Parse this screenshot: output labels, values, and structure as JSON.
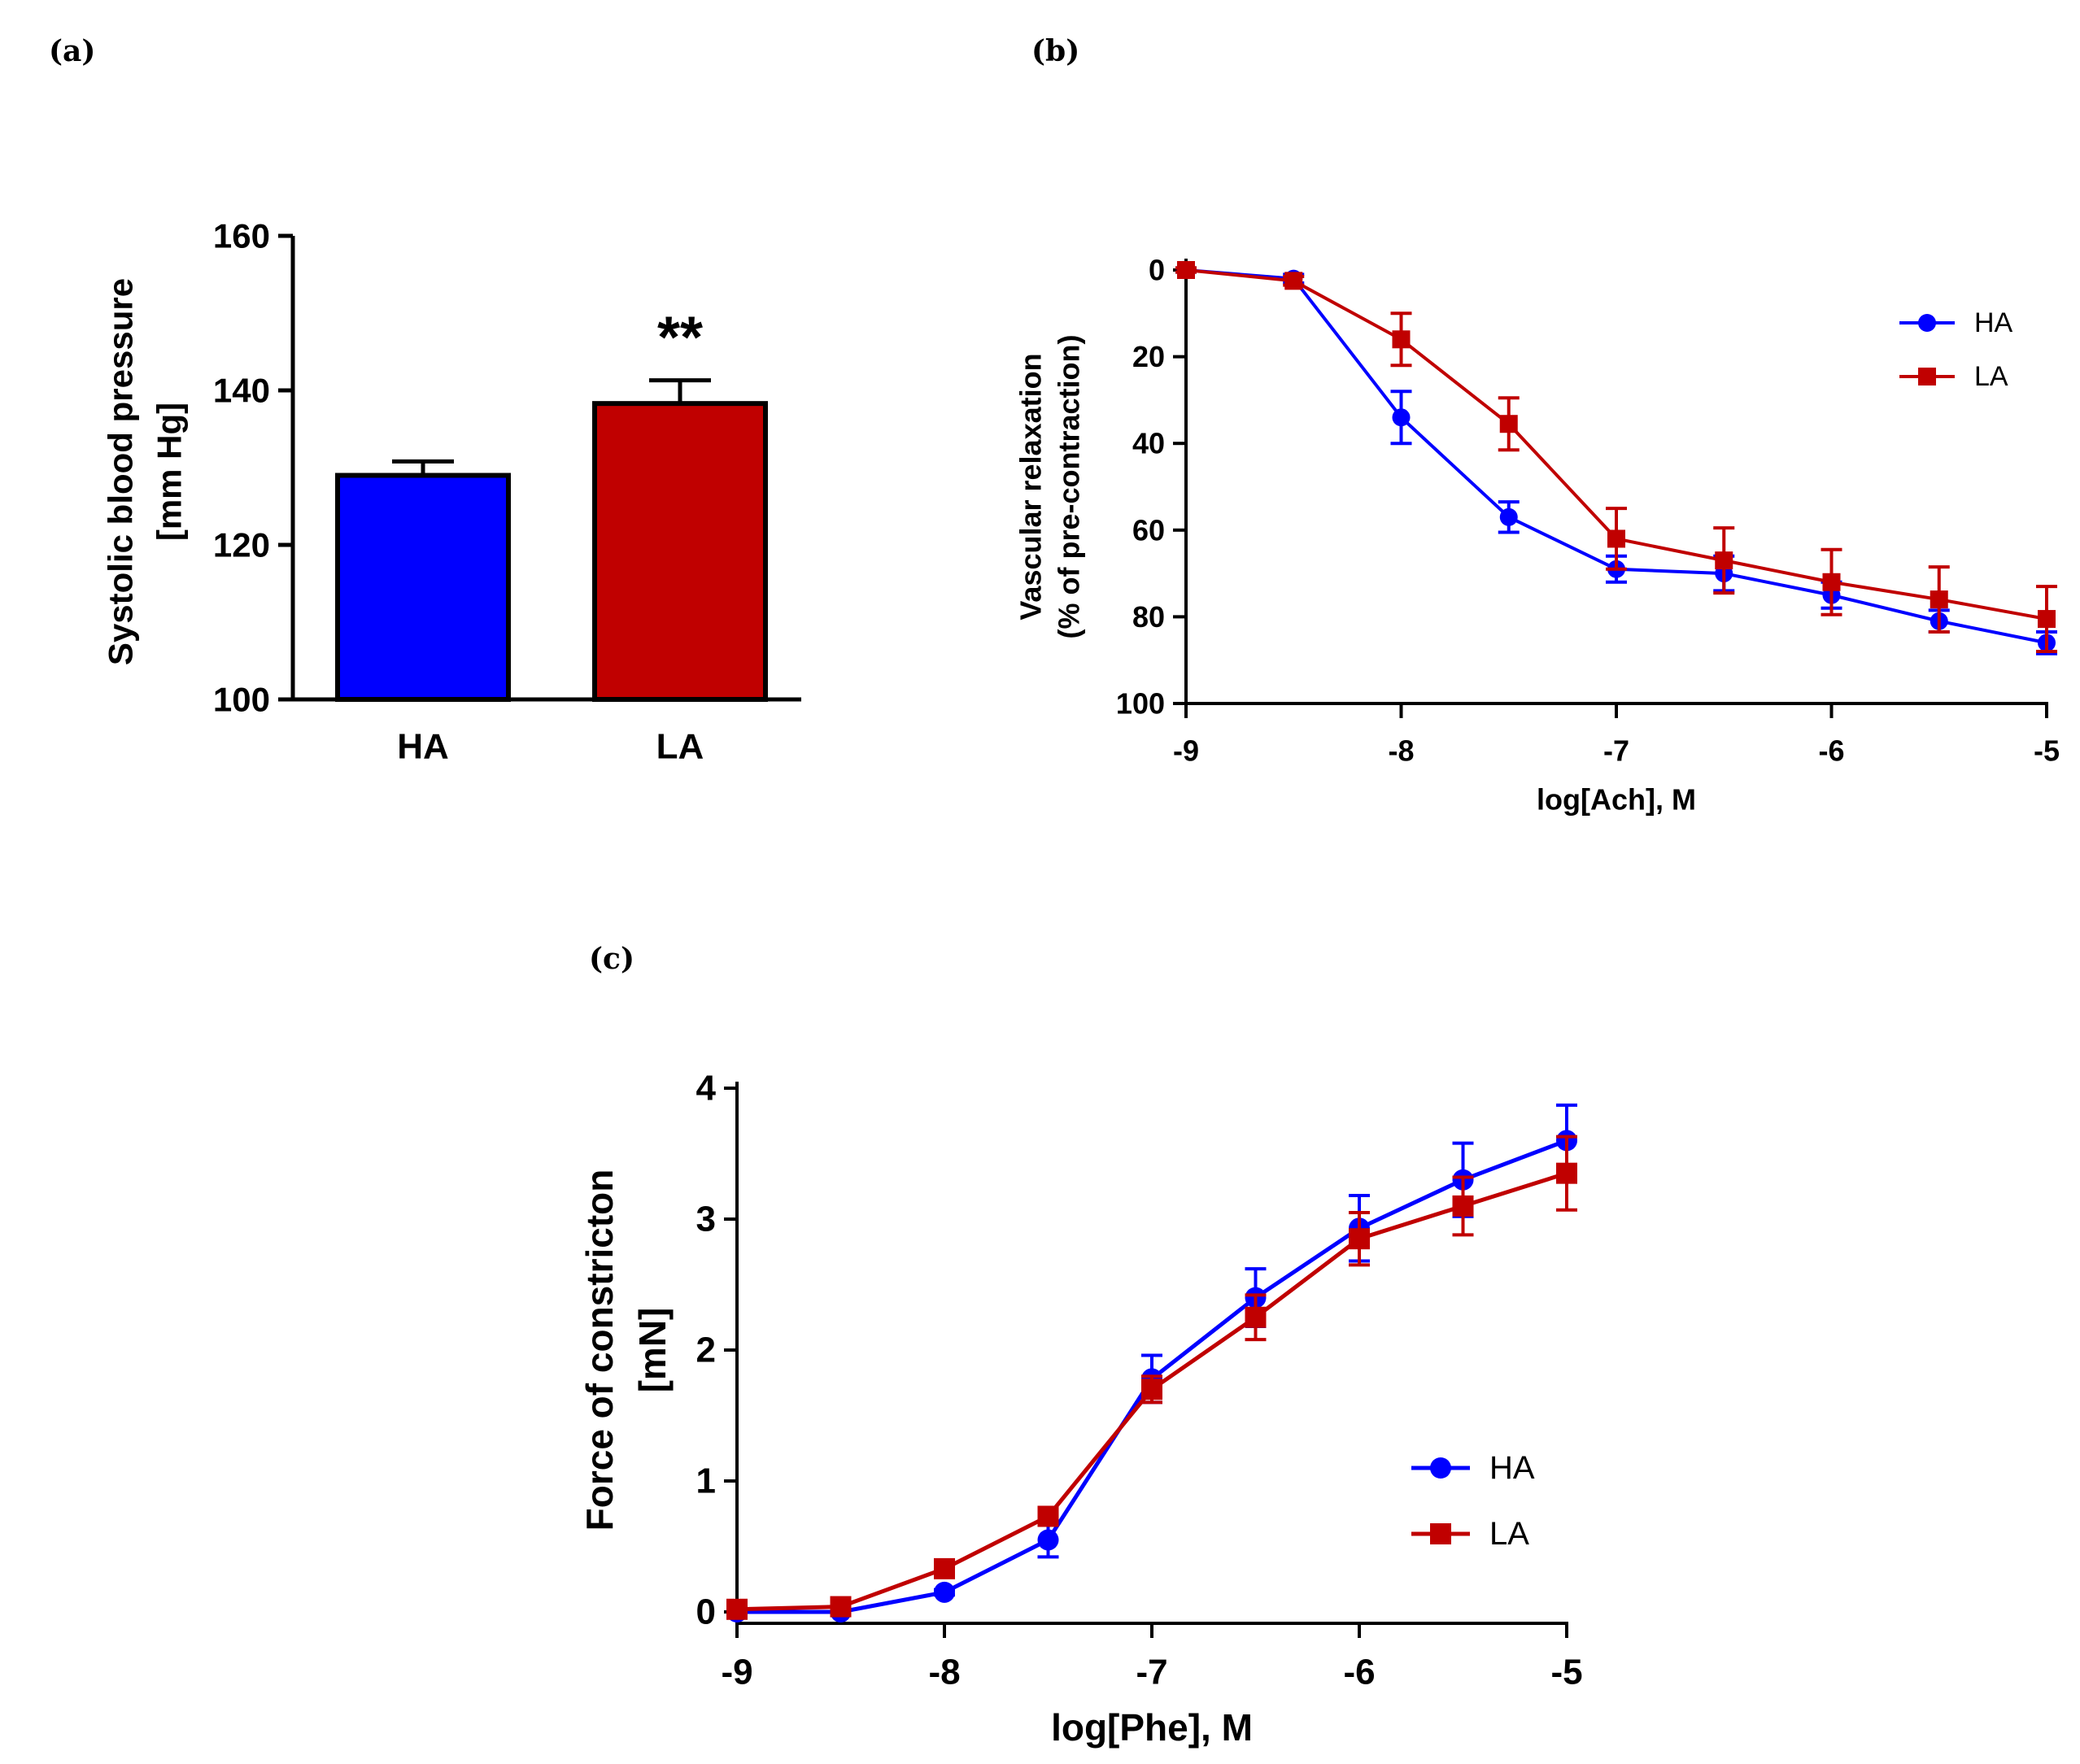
{
  "panels": {
    "a": "(a)",
    "b": "(b)",
    "c": "(c)"
  },
  "colors": {
    "HA": "#0000ff",
    "LA": "#c00000"
  },
  "chart_data": [
    {
      "type": "bar",
      "panel": "(a)",
      "title": "",
      "categories": [
        "HA",
        "LA"
      ],
      "values": [
        129,
        138.3
      ],
      "errors": [
        1.8,
        3.0
      ],
      "ylabel": "Systolic blood pressure",
      "ylabel2": "[mm Hg]",
      "ylim": [
        100,
        160
      ],
      "yticks": [
        100,
        120,
        140,
        160
      ],
      "annotation": "**",
      "annotation_category": "LA"
    },
    {
      "type": "line",
      "panel": "(b)",
      "xlabel": "log[Ach], M",
      "ylabel": "Vascular relaxation",
      "ylabel2": "(% of pre-contraction)",
      "xlim": [
        -9,
        -5
      ],
      "ylim": [
        0,
        100
      ],
      "y_inverted": true,
      "xticks": [
        -9,
        -8,
        -7,
        -6,
        -5
      ],
      "yticks": [
        0,
        20,
        40,
        60,
        80,
        100
      ],
      "legend_position": "top-right",
      "series": [
        {
          "name": "HA",
          "marker": "circle",
          "x": [
            -9,
            -8.5,
            -8,
            -7.5,
            -7,
            -6.5,
            -6,
            -5.5,
            -5
          ],
          "y": [
            0,
            2,
            34,
            57,
            69,
            70,
            75,
            81,
            86
          ],
          "err": [
            0.5,
            1,
            6,
            3.5,
            3,
            4,
            3,
            2.5,
            2.5
          ]
        },
        {
          "name": "LA",
          "marker": "square",
          "x": [
            -9,
            -8.5,
            -8,
            -7.5,
            -7,
            -6.5,
            -6,
            -5.5,
            -5
          ],
          "y": [
            0,
            2.5,
            16,
            35.5,
            62,
            67,
            72,
            76,
            80.5
          ],
          "err": [
            0.5,
            1,
            6,
            6,
            7,
            7.5,
            7.5,
            7.5,
            7.5
          ]
        }
      ]
    },
    {
      "type": "line",
      "panel": "(c)",
      "xlabel": "log[Phe], M",
      "ylabel": "Force of constricton",
      "ylabel2": "[mN]",
      "xlim": [
        -9,
        -5
      ],
      "ylim": [
        0,
        4
      ],
      "xticks": [
        -9,
        -8,
        -7,
        -6,
        -5
      ],
      "yticks": [
        0,
        1,
        2,
        3,
        4
      ],
      "legend_position": "lower-right",
      "series": [
        {
          "name": "HA",
          "marker": "circle",
          "x": [
            -9,
            -8.5,
            -8,
            -7.5,
            -7,
            -6.5,
            -6,
            -5.5,
            -5
          ],
          "y": [
            0,
            0,
            0.15,
            0.55,
            1.78,
            2.4,
            2.93,
            3.3,
            3.6
          ],
          "err": [
            0.02,
            0.02,
            0.02,
            0.13,
            0.18,
            0.22,
            0.25,
            0.28,
            0.27
          ]
        },
        {
          "name": "LA",
          "marker": "square",
          "x": [
            -9,
            -8.5,
            -8,
            -7.5,
            -7,
            -6.5,
            -6,
            -5.5,
            -5
          ],
          "y": [
            0.02,
            0.04,
            0.33,
            0.73,
            1.7,
            2.25,
            2.85,
            3.1,
            3.35
          ],
          "err": [
            0.02,
            0.02,
            0.04,
            0.05,
            0.1,
            0.17,
            0.2,
            0.22,
            0.28
          ]
        }
      ]
    }
  ]
}
